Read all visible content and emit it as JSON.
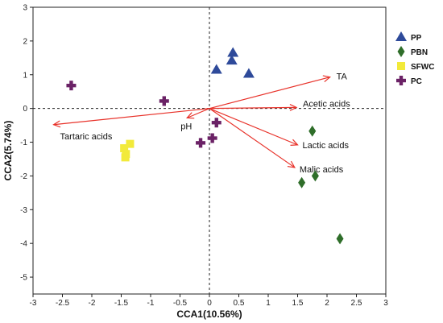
{
  "chart_data": {
    "type": "scatter",
    "xlabel": "CCA1(10.56%)",
    "ylabel": "CCA2(5.74%)",
    "xlim": [
      -3,
      3
    ],
    "ylim": [
      -5.5,
      3
    ],
    "xticks": [
      -3,
      -2.5,
      -2,
      -1.5,
      -1,
      -0.5,
      0,
      0.5,
      1,
      1.5,
      2,
      2.5,
      3
    ],
    "yticks": [
      3,
      2,
      1,
      0,
      -1,
      -2,
      -3,
      -4,
      -5
    ],
    "grid": false,
    "reference_lines": {
      "x": 0,
      "y": 0,
      "style": "dashed"
    },
    "legend_position": "top-right",
    "series": [
      {
        "name": "PP",
        "marker": "triangle",
        "color": "#2e4a9a",
        "points": [
          [
            0.4,
            1.65
          ],
          [
            0.38,
            1.42
          ],
          [
            0.12,
            1.15
          ],
          [
            0.67,
            1.03
          ]
        ]
      },
      {
        "name": "PBN",
        "marker": "diamond",
        "color": "#2f6e2a",
        "points": [
          [
            1.75,
            -0.67
          ],
          [
            1.8,
            -2.0
          ],
          [
            1.57,
            -2.2
          ],
          [
            2.22,
            -3.86
          ]
        ]
      },
      {
        "name": "SFWC",
        "marker": "square",
        "color": "#f2ea3a",
        "points": [
          [
            -1.35,
            -1.05
          ],
          [
            -1.45,
            -1.18
          ],
          [
            -1.42,
            -1.35
          ],
          [
            -1.43,
            -1.45
          ]
        ]
      },
      {
        "name": "PC",
        "marker": "cross",
        "color": "#6b2266",
        "points": [
          [
            -2.35,
            0.68
          ],
          [
            -0.77,
            0.22
          ],
          [
            0.12,
            -0.42
          ],
          [
            0.05,
            -0.88
          ],
          [
            -0.15,
            -1.02
          ]
        ]
      }
    ],
    "vectors": [
      {
        "label": "TA",
        "x": 2.05,
        "y": 0.93
      },
      {
        "label": "Acetic acids",
        "x": 1.48,
        "y": 0.03
      },
      {
        "label": "Lactic acids",
        "x": 1.5,
        "y": -1.08
      },
      {
        "label": "Malic acids",
        "x": 1.45,
        "y": -1.75
      },
      {
        "label": "pH",
        "x": -0.38,
        "y": -0.28
      },
      {
        "label": "Tartaric acids",
        "x": -2.65,
        "y": -0.48
      }
    ],
    "colors": {
      "vector": "#e8322a",
      "axes": "#222222"
    }
  }
}
